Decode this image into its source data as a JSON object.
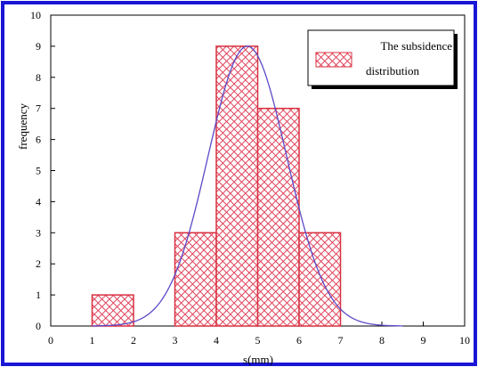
{
  "colors": {
    "frame": "#1a16d6",
    "bar_stroke": "#d7303f",
    "bar_hatch": "#e0435a",
    "curve": "#5a4ac8",
    "axis": "#000000"
  },
  "chart_data": {
    "type": "bar",
    "xlabel": "s(mm)",
    "ylabel": "frequency",
    "xlim": [
      0,
      10
    ],
    "ylim": [
      0,
      10
    ],
    "x_ticks": [
      "0",
      "1",
      "2",
      "3",
      "4",
      "5",
      "6",
      "7",
      "8",
      "9",
      "10"
    ],
    "y_ticks": [
      "0",
      "1",
      "2",
      "3",
      "4",
      "5",
      "6",
      "7",
      "8",
      "9",
      "10"
    ],
    "bins": [
      {
        "from": 1,
        "to": 2,
        "value": 1
      },
      {
        "from": 3,
        "to": 4,
        "value": 3
      },
      {
        "from": 4,
        "to": 5,
        "value": 9
      },
      {
        "from": 5,
        "to": 6,
        "value": 7
      },
      {
        "from": 6,
        "to": 7,
        "value": 3
      }
    ],
    "legend": {
      "label_line1": "The subsidence",
      "label_line2": "distribution",
      "position": "top-right"
    },
    "fit_curve": {
      "type": "normal",
      "mean": 4.75,
      "peak": 9.0,
      "sigma": 0.95,
      "x_range": [
        1.0,
        8.5
      ]
    }
  }
}
